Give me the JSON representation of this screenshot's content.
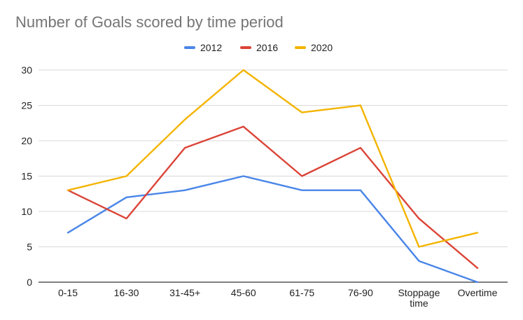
{
  "chart_data": {
    "type": "line",
    "title": "Number of Goals scored by time period",
    "xlabel": "",
    "ylabel": "",
    "categories": [
      "0-15",
      "16-30",
      "31-45+",
      "45-60",
      "61-75",
      "76-90",
      "Stoppage time",
      "Overtime"
    ],
    "series": [
      {
        "name": "2012",
        "color": "#4a86e8",
        "values": [
          7,
          12,
          13,
          15,
          13,
          13,
          3,
          0
        ]
      },
      {
        "name": "2016",
        "color": "#db4437",
        "values": [
          13,
          9,
          19,
          22,
          15,
          19,
          9,
          2
        ]
      },
      {
        "name": "2020",
        "color": "#f4b400",
        "values": [
          13,
          15,
          23,
          30,
          24,
          25,
          5,
          7
        ]
      }
    ],
    "ylim": [
      0,
      30
    ],
    "yticks": [
      0,
      5,
      10,
      15,
      20,
      25,
      30
    ],
    "grid": true,
    "legend_position": "top-center"
  }
}
